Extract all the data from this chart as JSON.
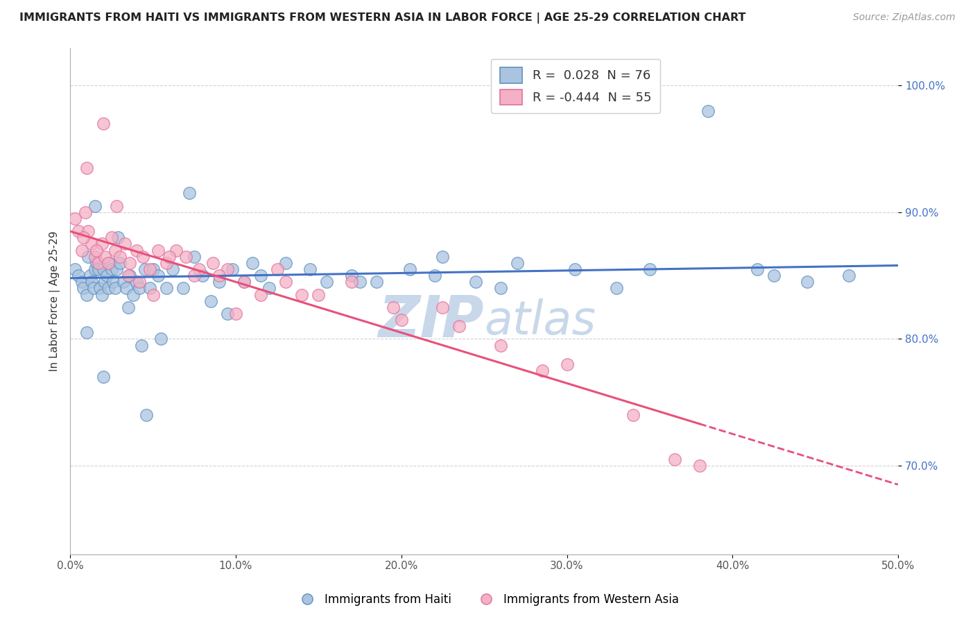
{
  "title": "IMMIGRANTS FROM HAITI VS IMMIGRANTS FROM WESTERN ASIA IN LABOR FORCE | AGE 25-29 CORRELATION CHART",
  "source": "Source: ZipAtlas.com",
  "ylabel": "In Labor Force | Age 25-29",
  "xlim": [
    0.0,
    50.0
  ],
  "ylim": [
    63.0,
    103.0
  ],
  "xticks": [
    0.0,
    10.0,
    20.0,
    30.0,
    40.0,
    50.0
  ],
  "yticks": [
    70.0,
    80.0,
    90.0,
    100.0
  ],
  "ytick_labels": [
    "70.0%",
    "80.0%",
    "90.0%",
    "100.0%"
  ],
  "xtick_labels": [
    "0.0%",
    "10.0%",
    "20.0%",
    "30.0%",
    "40.0%",
    "50.0%"
  ],
  "legend1_label": "R =  0.028  N = 76",
  "legend2_label": "R = -0.444  N = 55",
  "haiti_color": "#aac4e0",
  "western_color": "#f4b0c4",
  "haiti_edge": "#6090c0",
  "western_edge": "#e070a0",
  "trend_blue": "#4472c4",
  "trend_pink": "#e8507a",
  "watermark_zip": "ZIP",
  "watermark_atlas": "atlas",
  "watermark_color": "#c8d8ea",
  "haiti_x": [
    0.3,
    0.5,
    0.7,
    0.8,
    1.0,
    1.1,
    1.2,
    1.3,
    1.4,
    1.5,
    1.6,
    1.7,
    1.8,
    1.9,
    2.0,
    2.1,
    2.2,
    2.3,
    2.4,
    2.5,
    2.6,
    2.7,
    2.8,
    3.0,
    3.2,
    3.4,
    3.6,
    3.8,
    4.0,
    4.2,
    4.5,
    4.8,
    5.0,
    5.3,
    5.8,
    6.2,
    6.8,
    7.5,
    8.0,
    8.5,
    9.0,
    9.8,
    10.5,
    11.5,
    12.0,
    13.0,
    14.5,
    15.5,
    17.0,
    18.5,
    20.5,
    22.0,
    24.5,
    27.0,
    30.5,
    33.0,
    35.0,
    41.5,
    42.5,
    44.5,
    47.0,
    1.0,
    1.5,
    2.9,
    3.5,
    4.3,
    5.5,
    7.2,
    9.5,
    11.0,
    17.5,
    22.5,
    26.0,
    38.5,
    2.0,
    4.6
  ],
  "haiti_y": [
    85.5,
    85.0,
    84.5,
    84.0,
    83.5,
    86.5,
    85.0,
    84.5,
    84.0,
    85.5,
    86.0,
    85.5,
    84.0,
    83.5,
    85.5,
    84.5,
    85.0,
    84.0,
    86.0,
    85.5,
    84.5,
    84.0,
    85.5,
    86.0,
    84.5,
    84.0,
    85.0,
    83.5,
    84.5,
    84.0,
    85.5,
    84.0,
    85.5,
    85.0,
    84.0,
    85.5,
    84.0,
    86.5,
    85.0,
    83.0,
    84.5,
    85.5,
    84.5,
    85.0,
    84.0,
    86.0,
    85.5,
    84.5,
    85.0,
    84.5,
    85.5,
    85.0,
    84.5,
    86.0,
    85.5,
    84.0,
    85.5,
    85.5,
    85.0,
    84.5,
    85.0,
    80.5,
    90.5,
    88.0,
    82.5,
    79.5,
    80.0,
    91.5,
    82.0,
    86.0,
    84.5,
    86.5,
    84.0,
    98.0,
    77.0,
    74.0
  ],
  "western_x": [
    0.3,
    0.5,
    0.7,
    0.9,
    1.1,
    1.3,
    1.5,
    1.7,
    1.9,
    2.1,
    2.3,
    2.5,
    2.7,
    3.0,
    3.3,
    3.6,
    4.0,
    4.4,
    4.8,
    5.3,
    5.8,
    6.4,
    7.0,
    7.8,
    8.6,
    9.5,
    10.5,
    11.5,
    13.0,
    15.0,
    17.0,
    19.5,
    22.5,
    26.0,
    30.0,
    34.0,
    38.0,
    1.0,
    2.0,
    3.5,
    5.0,
    7.5,
    10.0,
    14.0,
    20.0,
    28.5,
    0.8,
    1.6,
    4.2,
    6.0,
    9.0,
    12.5,
    23.5,
    36.5,
    2.8
  ],
  "western_y": [
    89.5,
    88.5,
    87.0,
    90.0,
    88.5,
    87.5,
    86.5,
    86.0,
    87.5,
    86.5,
    86.0,
    88.0,
    87.0,
    86.5,
    87.5,
    86.0,
    87.0,
    86.5,
    85.5,
    87.0,
    86.0,
    87.0,
    86.5,
    85.5,
    86.0,
    85.5,
    84.5,
    83.5,
    84.5,
    83.5,
    84.5,
    82.5,
    82.5,
    79.5,
    78.0,
    74.0,
    70.0,
    93.5,
    97.0,
    85.0,
    83.5,
    85.0,
    82.0,
    83.5,
    81.5,
    77.5,
    88.0,
    87.0,
    84.5,
    86.5,
    85.0,
    85.5,
    81.0,
    70.5,
    90.5
  ],
  "blue_line_x0": 0.0,
  "blue_line_y0": 84.8,
  "blue_line_x1": 50.0,
  "blue_line_y1": 85.8,
  "pink_line_x0": 0.0,
  "pink_line_y0": 88.5,
  "pink_line_x1": 50.0,
  "pink_line_y1": 68.5,
  "pink_solid_end": 38.0
}
